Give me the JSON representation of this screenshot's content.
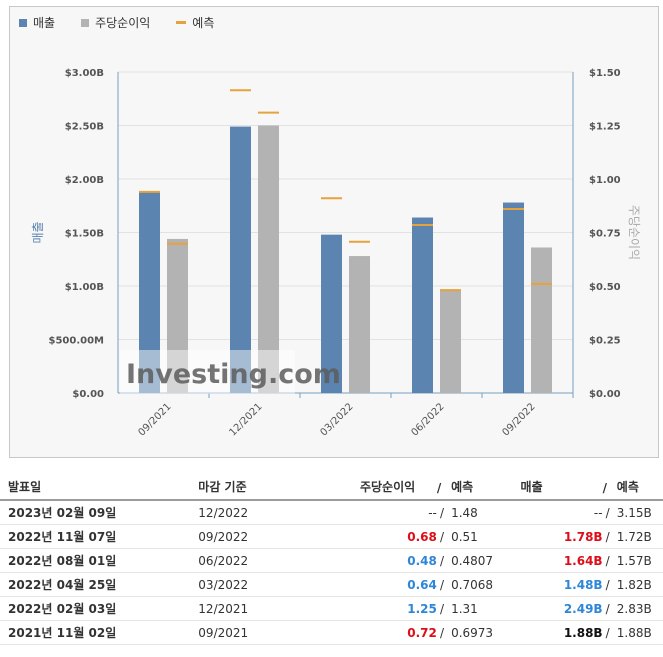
{
  "legend": [
    {
      "label": "매출",
      "color": "#5b85b0"
    },
    {
      "label": "주당순이익",
      "color": "#b3b3b3"
    },
    {
      "label": "예측",
      "color": "#e6a23c"
    }
  ],
  "chart_data": {
    "type": "bar",
    "categories": [
      "09/2021",
      "12/2021",
      "03/2022",
      "06/2022",
      "09/2022"
    ],
    "series": [
      {
        "name": "매출",
        "axis": "left",
        "values": [
          1.88,
          2.49,
          1.48,
          1.64,
          1.78
        ],
        "forecast": [
          1.88,
          2.83,
          1.82,
          1.57,
          1.72
        ]
      },
      {
        "name": "주당순이익",
        "axis": "right",
        "values": [
          0.72,
          1.25,
          0.64,
          0.48,
          0.68
        ],
        "forecast": [
          0.6973,
          1.31,
          0.7068,
          0.4807,
          0.51
        ]
      }
    ],
    "ylabel_left": "매출",
    "ylabel_right": "주당순이익",
    "ylim_left": [
      0,
      3.0
    ],
    "ylim_right": [
      0,
      1.5
    ],
    "yticks_left": [
      "$0.00",
      "$500.00M",
      "$1.00B",
      "$1.50B",
      "$2.00B",
      "$2.50B",
      "$3.00B"
    ],
    "yticks_right": [
      "$0.00",
      "$0.25",
      "$0.50",
      "$0.75",
      "$1.00",
      "$1.25",
      "$1.50"
    ],
    "grid": true,
    "legend_position": "top-left",
    "watermark": "Investing.com"
  },
  "colors": {
    "revenue": "#5b85b0",
    "eps": "#b3b3b3",
    "forecast": "#e6a23c",
    "beat": "#2f86d6",
    "miss": "#dd0d1a"
  },
  "table": {
    "headers": {
      "date": "발표일",
      "period": "마감 기준",
      "eps": "주당순이익",
      "sep": "/",
      "eps_forecast": "예측",
      "revenue": "매출",
      "revenue_forecast": "예측"
    },
    "rows": [
      {
        "date": "2023년 02월 09일",
        "period": "12/2022",
        "eps": "--",
        "eps_style": "v-plain",
        "eps_forecast": "1.48",
        "revenue": "--",
        "revenue_style": "v-plain",
        "revenue_forecast": "3.15B"
      },
      {
        "date": "2022년 11월 07일",
        "period": "09/2022",
        "eps": "0.68",
        "eps_style": "v-red",
        "eps_forecast": "0.51",
        "revenue": "1.78B",
        "revenue_style": "v-red",
        "revenue_forecast": "1.72B"
      },
      {
        "date": "2022년 08월 01일",
        "period": "06/2022",
        "eps": "0.48",
        "eps_style": "v-blue",
        "eps_forecast": "0.4807",
        "revenue": "1.64B",
        "revenue_style": "v-red",
        "revenue_forecast": "1.57B"
      },
      {
        "date": "2022년 04월 25일",
        "period": "03/2022",
        "eps": "0.64",
        "eps_style": "v-blue",
        "eps_forecast": "0.7068",
        "revenue": "1.48B",
        "revenue_style": "v-blue",
        "revenue_forecast": "1.82B"
      },
      {
        "date": "2022년 02월 03일",
        "period": "12/2021",
        "eps": "1.25",
        "eps_style": "v-blue",
        "eps_forecast": "1.31",
        "revenue": "2.49B",
        "revenue_style": "v-blue",
        "revenue_forecast": "2.83B"
      },
      {
        "date": "2021년 11월 02일",
        "period": "09/2021",
        "eps": "0.72",
        "eps_style": "v-red",
        "eps_forecast": "0.6973",
        "revenue": "1.88B",
        "revenue_style": "v-dark",
        "revenue_forecast": "1.88B"
      }
    ]
  }
}
